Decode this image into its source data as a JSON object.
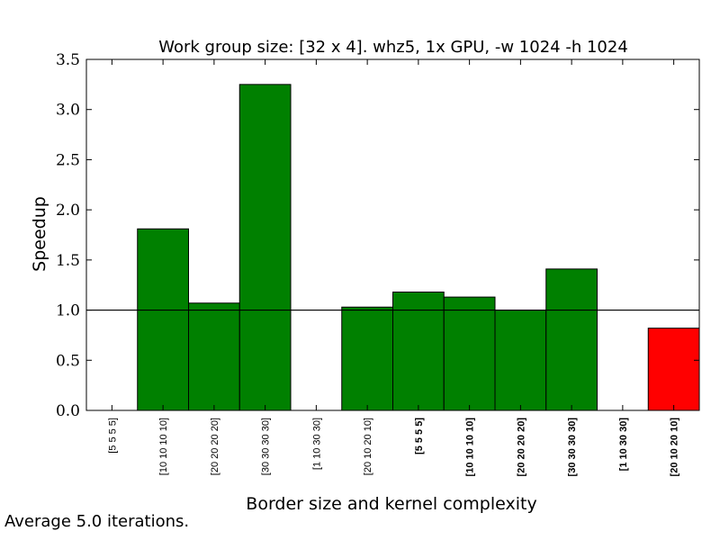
{
  "chart_data": {
    "type": "bar",
    "title": "Work group size: [32 x 4]. whz5, 1x GPU, -w 1024 -h 1024",
    "xlabel": "Border size and kernel complexity",
    "ylabel": "Speedup",
    "ylim": [
      0,
      3.5
    ],
    "yticks": [
      "0.0",
      "0.5",
      "1.0",
      "1.5",
      "2.0",
      "2.5",
      "3.0",
      "3.5"
    ],
    "reference_line": 1.0,
    "categories": [
      "[5 5 5 5]",
      "[10 10 10 10]",
      "[20 20 20 20]",
      "[30 30 30 30]",
      "[1 10 30 30]",
      "[20 10 20 10]",
      "[5 5 5 5]",
      "[10 10 10 10]",
      "[20 20 20 20]",
      "[30 30 30 30]",
      "[1 10 30 30]",
      "[20 10 20 10]"
    ],
    "category_bold": [
      false,
      false,
      false,
      false,
      false,
      false,
      true,
      true,
      true,
      true,
      true,
      true
    ],
    "values": [
      0,
      1.81,
      1.07,
      3.25,
      0,
      1.03,
      1.18,
      1.13,
      1.0,
      1.41,
      0,
      0.82
    ],
    "colors": {
      "above_reference": "#008000",
      "below_reference": "#ff0000",
      "edge": "#000000"
    },
    "grid": false
  },
  "footnote": "Average 5.0 iterations."
}
